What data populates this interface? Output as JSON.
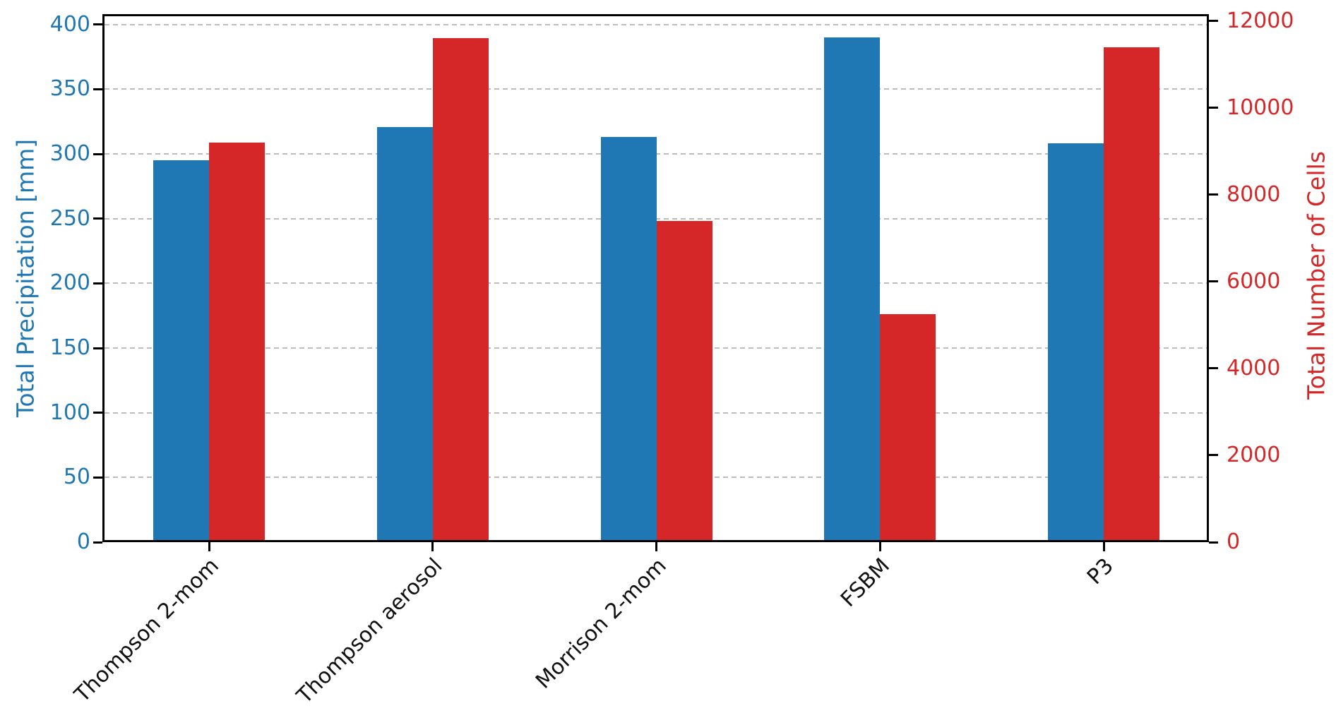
{
  "chart_data": {
    "type": "bar",
    "title": "",
    "legend": "none",
    "categories": [
      "Thompson 2-mom",
      "Thompson aerosol",
      "Morrison 2-mom",
      "FSBM",
      "P3"
    ],
    "series": [
      {
        "name": "Total Precipitation",
        "axis": "left",
        "color": "#1f77b4",
        "values": [
          295,
          321,
          313,
          390,
          308
        ]
      },
      {
        "name": "Total Number of Cells",
        "axis": "right",
        "color": "#d62728",
        "values": [
          9200,
          11600,
          7400,
          5250,
          11400
        ]
      }
    ],
    "left_axis": {
      "label": "Total Precipitation [mm]",
      "color": "#1f77b4",
      "ticks": [
        0,
        50,
        100,
        150,
        200,
        250,
        300,
        350,
        400
      ],
      "range": [
        0,
        408
      ]
    },
    "right_axis": {
      "label": "Total Number of Cells",
      "color": "#d62728",
      "ticks": [
        0,
        2000,
        4000,
        6000,
        8000,
        10000,
        12000
      ],
      "range": [
        0,
        12160
      ]
    },
    "x_axis": {
      "tick_rotation_deg": 45
    },
    "grid": {
      "axis": "y",
      "style": "dashed",
      "color": "#bcbcbc"
    }
  }
}
